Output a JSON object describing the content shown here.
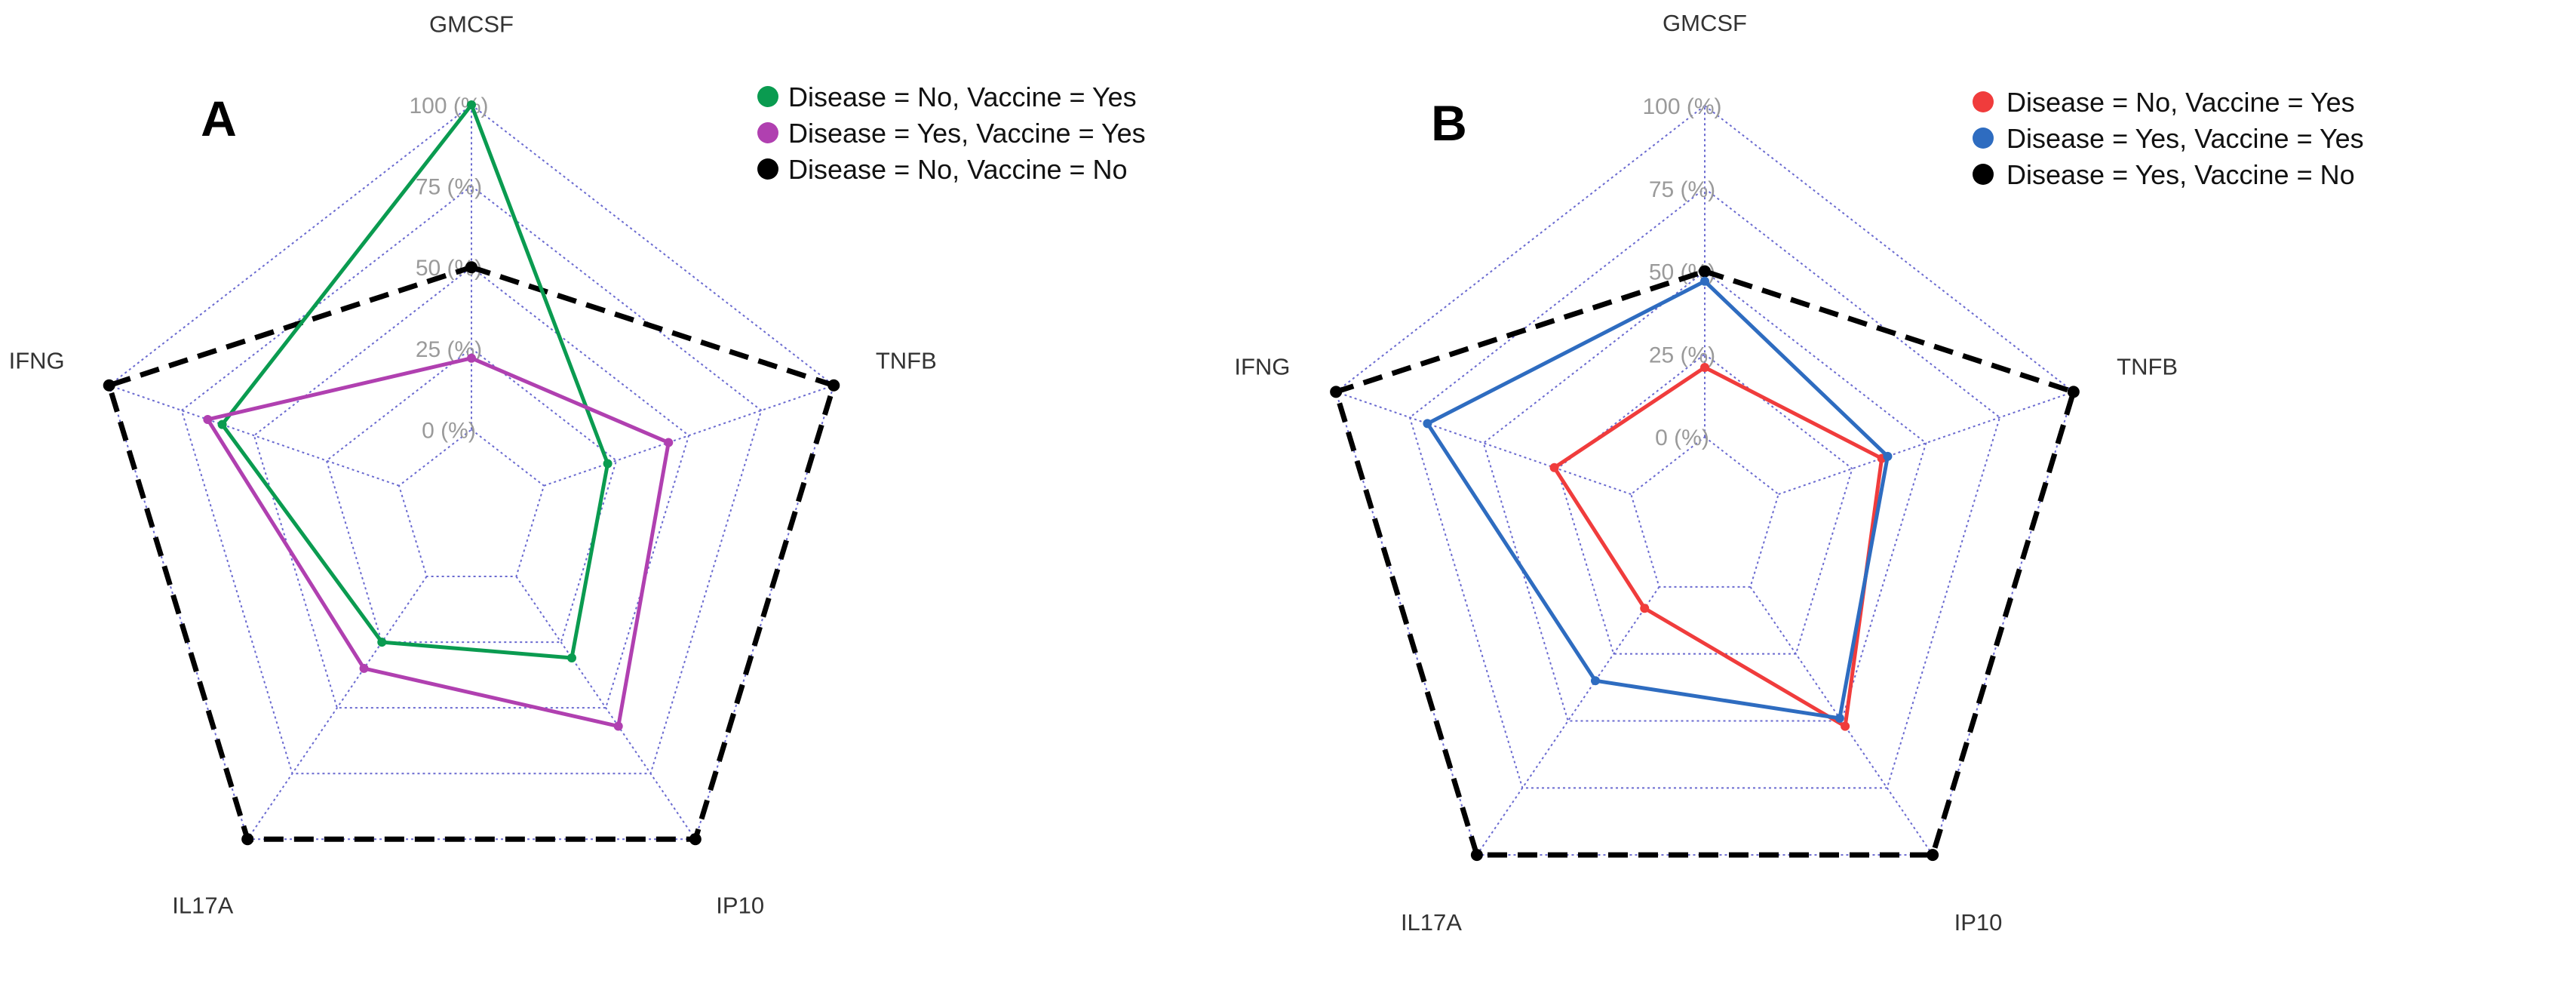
{
  "chart_data": [
    {
      "type": "radar",
      "panel_label": "A",
      "axes": [
        "GMCSF",
        "TNFB",
        "IP10",
        "IL17A",
        "IFNG"
      ],
      "ring_labels": [
        "0 (%)",
        "25 (%)",
        "50 (%)",
        "75 (%)",
        "100 (%)"
      ],
      "ring_values": [
        0,
        25,
        50,
        75,
        100
      ],
      "range": [
        0,
        100
      ],
      "legend_position": "top-right",
      "series": [
        {
          "name": "Disease = No, Vaccine = Yes",
          "color": "#0a9b50",
          "style": "solid",
          "values": [
            100,
            22,
            31,
            25,
            61
          ]
        },
        {
          "name": "Disease = Yes, Vaccine = Yes",
          "color": "#b040b0",
          "style": "solid",
          "values": [
            22,
            43,
            57,
            35,
            66
          ]
        },
        {
          "name": "Disease = No, Vaccine = No",
          "color": "#000000",
          "style": "dashed",
          "values": [
            50,
            100,
            100,
            100,
            100
          ]
        }
      ]
    },
    {
      "type": "radar",
      "panel_label": "B",
      "axes": [
        "GMCSF",
        "TNFB",
        "IP10",
        "IL17A",
        "IFNG"
      ],
      "ring_labels": [
        "0 (%)",
        "25 (%)",
        "50 (%)",
        "75 (%)",
        "100 (%)"
      ],
      "ring_values": [
        0,
        25,
        50,
        75,
        100
      ],
      "range": [
        0,
        100
      ],
      "legend_position": "top-right",
      "series": [
        {
          "name": "Disease = No, Vaccine = Yes",
          "color": "#f03c3c",
          "style": "solid",
          "values": [
            21,
            35,
            52,
            8,
            26
          ]
        },
        {
          "name": "Disease = Yes, Vaccine = Yes",
          "color": "#2e6cc0",
          "style": "solid",
          "values": [
            47,
            37,
            49,
            35,
            69
          ]
        },
        {
          "name": "Disease = Yes, Vaccine = No",
          "color": "#000000",
          "style": "dashed",
          "values": [
            50,
            100,
            100,
            100,
            100
          ]
        }
      ]
    }
  ]
}
